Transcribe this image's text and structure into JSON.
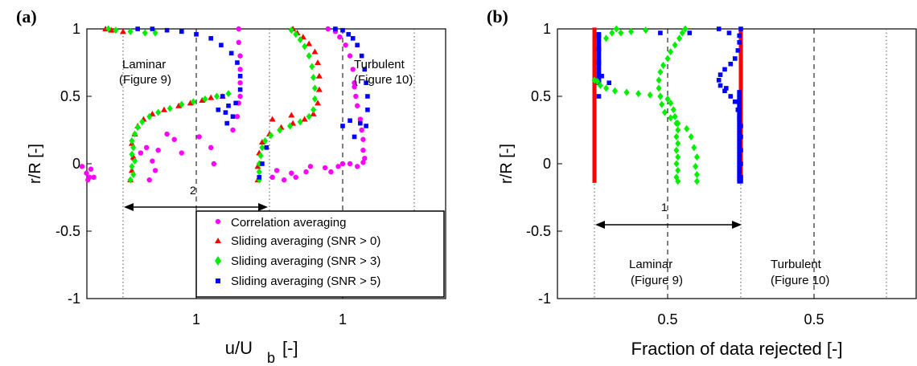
{
  "chart_data": [
    {
      "panel": "(a)",
      "type": "scatter",
      "xlabel": "u/U",
      "xlabel_sub": "b",
      "xlabel_unit": "[-]",
      "ylabel": "r/R [-]",
      "ylim": [
        -1,
        1
      ],
      "yticks": [
        "1",
        "0.5",
        "0",
        "-0.5",
        "-1"
      ],
      "xtick_labels": [
        "1",
        "1"
      ],
      "annotations": {
        "laminar_line1": "Laminar",
        "laminar_line2": "(Figure 9)",
        "turbulent_line1": "Turbulent",
        "turbulent_line2": "(Figure 10)",
        "shift": "2"
      },
      "legend_position": "lower-right",
      "colors": {
        "magenta": "#ff00ff",
        "red": "#ff0000",
        "green": "#00ee00",
        "blue": "#0000ff"
      },
      "series": [
        {
          "name": "Correlation averaging",
          "marker": "circle",
          "laminar": [
            [
              0.22,
              -0.02
            ],
            [
              0.25,
              -0.07
            ],
            [
              0.27,
              -0.1
            ],
            [
              0.28,
              -0.04
            ],
            [
              0.3,
              -0.1
            ],
            [
              0.26,
              -0.12
            ],
            [
              0.57,
              0.04
            ],
            [
              0.62,
              0.08
            ],
            [
              0.66,
              0.12
            ],
            [
              0.7,
              0.02
            ],
            [
              0.74,
              0.1
            ],
            [
              0.72,
              -0.05
            ],
            [
              0.68,
              -0.12
            ],
            [
              0.8,
              0.22
            ],
            [
              0.85,
              0.18
            ],
            [
              0.9,
              0.08
            ],
            [
              1.02,
              0.2
            ],
            [
              1.1,
              0.12
            ],
            [
              1.12,
              0.0
            ],
            [
              1.25,
              0.25
            ],
            [
              1.28,
              0.35
            ],
            [
              1.29,
              0.45
            ],
            [
              1.3,
              0.5
            ],
            [
              1.3,
              0.6
            ],
            [
              1.3,
              0.7
            ],
            [
              1.3,
              0.8
            ],
            [
              1.29,
              0.9
            ],
            [
              1.29,
              1.0
            ]
          ],
          "turbulent": [
            [
              0.52,
              -0.1
            ],
            [
              0.55,
              -0.05
            ],
            [
              0.6,
              -0.12
            ],
            [
              0.65,
              -0.07
            ],
            [
              0.68,
              -0.1
            ],
            [
              0.75,
              -0.06
            ],
            [
              0.78,
              -0.02
            ],
            [
              0.88,
              -0.03
            ],
            [
              0.92,
              -0.06
            ],
            [
              0.97,
              -0.02
            ],
            [
              1.0,
              0.0
            ],
            [
              1.05,
              0.0
            ],
            [
              1.1,
              -0.02
            ],
            [
              1.14,
              0.01
            ],
            [
              1.15,
              0.04
            ],
            [
              1.14,
              0.1
            ],
            [
              1.14,
              0.18
            ],
            [
              1.13,
              0.25
            ],
            [
              1.12,
              0.33
            ],
            [
              1.1,
              0.43
            ],
            [
              1.09,
              0.5
            ],
            [
              1.08,
              0.57
            ],
            [
              1.08,
              0.6
            ],
            [
              1.07,
              0.7
            ],
            [
              1.05,
              0.8
            ],
            [
              1.02,
              0.88
            ],
            [
              0.98,
              0.94
            ],
            [
              0.95,
              0.98
            ],
            [
              0.9,
              1.0
            ]
          ]
        },
        {
          "name": "Sliding averaging (SNR > 0)",
          "marker": "triangle",
          "laminar": [
            [
              0.55,
              -0.12
            ],
            [
              0.56,
              -0.05
            ],
            [
              0.57,
              0.05
            ],
            [
              0.56,
              0.15
            ],
            [
              0.58,
              0.22
            ],
            [
              0.6,
              0.28
            ],
            [
              0.64,
              0.33
            ],
            [
              0.7,
              0.37
            ],
            [
              0.78,
              0.4
            ],
            [
              0.88,
              0.43
            ],
            [
              0.96,
              0.45
            ],
            [
              1.04,
              0.47
            ],
            [
              1.1,
              0.49
            ],
            [
              1.18,
              0.5
            ],
            [
              0.38,
              1.0
            ],
            [
              0.42,
              0.99
            ],
            [
              0.5,
              0.98
            ]
          ],
          "turbulent": [
            [
              0.42,
              -0.12
            ],
            [
              0.42,
              -0.02
            ],
            [
              0.43,
              0.08
            ],
            [
              0.45,
              0.16
            ],
            [
              0.5,
              0.22
            ],
            [
              0.58,
              0.27
            ],
            [
              0.66,
              0.3
            ],
            [
              0.74,
              0.33
            ],
            [
              0.8,
              0.37
            ],
            [
              0.65,
              0.36
            ],
            [
              0.52,
              0.33
            ],
            [
              0.83,
              0.45
            ],
            [
              0.84,
              0.55
            ],
            [
              0.84,
              0.65
            ],
            [
              0.83,
              0.75
            ],
            [
              0.81,
              0.83
            ],
            [
              0.77,
              0.89
            ],
            [
              0.73,
              0.94
            ],
            [
              0.69,
              0.97
            ],
            [
              0.66,
              1.0
            ]
          ]
        },
        {
          "name": "Sliding averaging (SNR > 3)",
          "marker": "diamond",
          "laminar": [
            [
              0.55,
              -0.12
            ],
            [
              0.57,
              -0.08
            ],
            [
              0.56,
              -0.02
            ],
            [
              0.58,
              0.02
            ],
            [
              0.56,
              0.07
            ],
            [
              0.57,
              0.12
            ],
            [
              0.56,
              0.17
            ],
            [
              0.58,
              0.22
            ],
            [
              0.6,
              0.27
            ],
            [
              0.63,
              0.31
            ],
            [
              0.68,
              0.35
            ],
            [
              0.74,
              0.38
            ],
            [
              0.82,
              0.41
            ],
            [
              0.9,
              0.44
            ],
            [
              0.98,
              0.46
            ],
            [
              1.06,
              0.48
            ],
            [
              1.14,
              0.5
            ],
            [
              1.22,
              0.52
            ],
            [
              0.4,
              1.0
            ],
            [
              0.45,
              0.99
            ],
            [
              0.55,
              0.98
            ],
            [
              0.65,
              0.97
            ],
            [
              0.72,
              0.97
            ]
          ],
          "turbulent": [
            [
              0.43,
              -0.12
            ],
            [
              0.43,
              -0.06
            ],
            [
              0.43,
              0.0
            ],
            [
              0.44,
              0.06
            ],
            [
              0.45,
              0.12
            ],
            [
              0.47,
              0.17
            ],
            [
              0.51,
              0.21
            ],
            [
              0.57,
              0.25
            ],
            [
              0.64,
              0.28
            ],
            [
              0.71,
              0.31
            ],
            [
              0.77,
              0.35
            ],
            [
              0.8,
              0.4
            ],
            [
              0.81,
              0.48
            ],
            [
              0.81,
              0.56
            ],
            [
              0.8,
              0.64
            ],
            [
              0.79,
              0.72
            ],
            [
              0.77,
              0.8
            ],
            [
              0.74,
              0.87
            ],
            [
              0.71,
              0.92
            ],
            [
              0.68,
              0.96
            ],
            [
              0.65,
              0.99
            ]
          ]
        },
        {
          "name": "Sliding averaging (SNR > 5)",
          "marker": "square",
          "laminar": [
            [
              1.27,
              0.45
            ],
            [
              1.22,
              0.43
            ],
            [
              1.2,
              0.38
            ],
            [
              1.25,
              0.35
            ],
            [
              1.21,
              0.3
            ],
            [
              1.15,
              0.4
            ],
            [
              1.18,
              0.5
            ],
            [
              1.3,
              0.55
            ],
            [
              1.3,
              0.65
            ],
            [
              1.28,
              0.75
            ],
            [
              1.24,
              0.82
            ],
            [
              1.17,
              0.88
            ],
            [
              1.1,
              0.93
            ],
            [
              1.0,
              0.96
            ],
            [
              0.9,
              0.98
            ],
            [
              0.8,
              0.99
            ],
            [
              0.7,
              1.0
            ],
            [
              0.6,
              1.0
            ]
          ],
          "turbulent": [
            [
              0.43,
              -0.1
            ],
            [
              0.45,
              0.0
            ],
            [
              0.48,
              0.12
            ],
            [
              1.05,
              0.32
            ],
            [
              1.0,
              0.28
            ],
            [
              1.08,
              0.2
            ],
            [
              1.12,
              0.3
            ],
            [
              1.16,
              0.28
            ],
            [
              1.17,
              0.4
            ],
            [
              1.17,
              0.5
            ],
            [
              1.16,
              0.6
            ],
            [
              1.15,
              0.7
            ],
            [
              1.13,
              0.8
            ],
            [
              1.1,
              0.88
            ],
            [
              1.07,
              0.93
            ],
            [
              1.04,
              0.96
            ],
            [
              1.0,
              0.99
            ],
            [
              0.95,
              1.0
            ]
          ]
        }
      ],
      "legend": [
        "Correlation averaging",
        "Sliding averaging (SNR > 0)",
        "Sliding averaging (SNR > 3)",
        "Sliding averaging (SNR > 5)"
      ]
    },
    {
      "panel": "(b)",
      "type": "scatter",
      "xlabel": "Fraction of data rejected [-]",
      "ylabel": "r/R [-]",
      "ylim": [
        -1,
        1
      ],
      "yticks": [
        "1",
        "0.5",
        "0",
        "-0.5",
        "-1"
      ],
      "xtick_labels": [
        "0.5",
        "0.5"
      ],
      "annotations": {
        "laminar_line1": "Laminar",
        "laminar_line2": "(Figure 9)",
        "turbulent_line1": "Turbulent",
        "turbulent_line2": "(Figure 10)",
        "shift": "1"
      },
      "laminar": {
        "red_x": 0.0,
        "blue": [
          [
            0.03,
            0.95
          ],
          [
            0.03,
            0.85
          ],
          [
            0.03,
            0.75
          ],
          [
            0.05,
            0.65
          ],
          [
            0.03,
            0.6
          ],
          [
            0.03,
            0.5
          ]
        ],
        "green": [
          [
            0.0,
            0.62
          ],
          [
            0.02,
            0.61
          ],
          [
            0.04,
            0.58
          ],
          [
            0.08,
            0.56
          ],
          [
            0.14,
            0.54
          ],
          [
            0.22,
            0.53
          ],
          [
            0.3,
            0.52
          ],
          [
            0.38,
            0.51
          ],
          [
            0.45,
            0.5
          ],
          [
            0.5,
            0.48
          ],
          [
            0.52,
            0.45
          ],
          [
            0.54,
            0.4
          ],
          [
            0.55,
            0.35
          ],
          [
            0.56,
            0.3
          ],
          [
            0.57,
            0.25
          ],
          [
            0.56,
            0.2
          ],
          [
            0.57,
            0.15
          ],
          [
            0.56,
            0.1
          ],
          [
            0.57,
            0.05
          ],
          [
            0.56,
            0.0
          ],
          [
            0.57,
            -0.05
          ],
          [
            0.56,
            -0.1
          ],
          [
            0.57,
            -0.13
          ],
          [
            0.15,
            1.0
          ],
          [
            0.12,
            0.97
          ],
          [
            0.08,
            0.93
          ],
          [
            0.18,
            0.97
          ],
          [
            0.25,
            0.98
          ],
          [
            0.35,
            0.99
          ]
        ],
        "blue_scatter": [
          [
            0.45,
            0.97
          ],
          [
            0.65,
            0.97
          ],
          [
            0.85,
            1.0
          ],
          [
            0.92,
            0.97
          ],
          [
            0.1,
            0.6
          ],
          [
            0.9,
            0.56
          ]
        ]
      },
      "turbulent": {
        "red_x": 1.0,
        "blue_x": 1.0,
        "green": [
          [
            0.62,
            1.0
          ],
          [
            0.6,
            0.97
          ],
          [
            0.58,
            0.93
          ],
          [
            0.55,
            0.88
          ],
          [
            0.52,
            0.83
          ],
          [
            0.5,
            0.78
          ],
          [
            0.47,
            0.73
          ],
          [
            0.45,
            0.68
          ],
          [
            0.44,
            0.62
          ],
          [
            0.44,
            0.56
          ],
          [
            0.45,
            0.5
          ],
          [
            0.46,
            0.44
          ],
          [
            0.48,
            0.38
          ],
          [
            0.52,
            0.34
          ],
          [
            0.57,
            0.3
          ],
          [
            0.63,
            0.26
          ],
          [
            0.66,
            0.2
          ],
          [
            0.68,
            0.12
          ],
          [
            0.7,
            0.05
          ],
          [
            0.69,
            -0.02
          ],
          [
            0.7,
            -0.08
          ],
          [
            0.7,
            -0.13
          ]
        ],
        "blue": [
          [
            1.0,
            1.0
          ],
          [
            0.99,
            0.95
          ],
          [
            0.99,
            0.9
          ],
          [
            0.98,
            0.84
          ],
          [
            0.96,
            0.78
          ],
          [
            0.93,
            0.74
          ],
          [
            0.89,
            0.7
          ],
          [
            0.86,
            0.66
          ],
          [
            0.85,
            0.62
          ],
          [
            0.86,
            0.58
          ],
          [
            0.89,
            0.54
          ],
          [
            0.93,
            0.5
          ],
          [
            0.96,
            0.46
          ],
          [
            0.98,
            0.4
          ],
          [
            0.99,
            0.34
          ],
          [
            1.0,
            0.28
          ],
          [
            1.0,
            0.2
          ],
          [
            1.0,
            0.1
          ],
          [
            1.0,
            0.0
          ],
          [
            1.0,
            -0.1
          ],
          [
            1.0,
            -0.13
          ]
        ]
      }
    }
  ]
}
